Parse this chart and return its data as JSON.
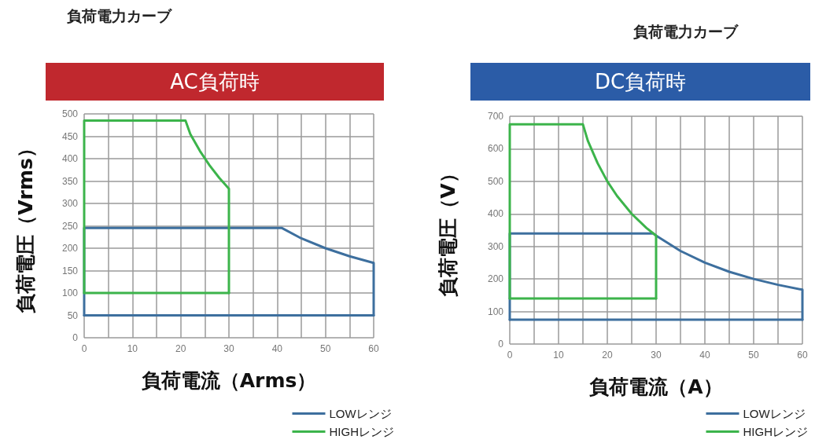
{
  "chart_data": [
    {
      "type": "line",
      "title": "負荷電力カーブ",
      "subtitle": "AC負荷時",
      "xlabel": "負荷電流（Arms）",
      "ylabel": "負荷電圧（Vrms）",
      "series": [
        {
          "name": "LOWレンジ",
          "color": "#3d6f9e",
          "x": [
            0,
            0,
            41,
            45,
            50,
            55,
            60,
            60
          ],
          "values": [
            50,
            245,
            245,
            222,
            200,
            182,
            167,
            50
          ]
        },
        {
          "color": "#3d6f9e",
          "x": [
            0,
            60
          ],
          "values": [
            50,
            50
          ]
        },
        {
          "name": "HIGHレンジ",
          "color": "#3cb44b",
          "x": [
            0,
            0,
            21,
            22,
            24,
            26,
            28,
            30,
            30
          ],
          "values": [
            100,
            485,
            485,
            455,
            417,
            385,
            357,
            333,
            100
          ]
        },
        {
          "color": "#3cb44b",
          "x": [
            0,
            30
          ],
          "values": [
            100,
            100
          ]
        }
      ],
      "xlim": [
        0,
        60
      ],
      "xticks": [
        0,
        {
          "value": 5,
          "label": null
        },
        10,
        {
          "value": 15,
          "label": null
        },
        20,
        {
          "value": 25,
          "label": null
        },
        30,
        {
          "value": 35,
          "label": null
        },
        40,
        {
          "value": 45,
          "label": null
        },
        50,
        {
          "value": 55,
          "label": null
        },
        60
      ],
      "ylim": [
        0,
        500
      ],
      "yticks": [
        0,
        50,
        100,
        150,
        200,
        250,
        300,
        350,
        400,
        450,
        500
      ],
      "grid": true,
      "legend": "bottom right",
      "marker": "none",
      "line_style": "solid"
    },
    {
      "type": "line",
      "title": "負荷電力カーブ",
      "subtitle": "DC負荷時",
      "xlabel": "負荷電流（A）",
      "ylabel": "負荷電圧（V）",
      "series": [
        {
          "name": "LOWレンジ",
          "color": "#3d6f9e",
          "x": [
            0,
            0,
            29.4,
            30,
            35,
            40,
            45,
            50,
            55,
            60,
            60
          ],
          "values": [
            75,
            340,
            340,
            333,
            286,
            250,
            222,
            200,
            182,
            167,
            75
          ]
        },
        {
          "color": "#3d6f9e",
          "x": [
            0,
            60
          ],
          "values": [
            75,
            75
          ]
        },
        {
          "name": "HIGHレンジ",
          "color": "#3cb44b",
          "x": [
            0,
            0,
            15,
            16,
            18,
            20,
            22,
            25,
            28,
            30,
            30
          ],
          "values": [
            140,
            675,
            675,
            625,
            556,
            500,
            455,
            400,
            357,
            333,
            140
          ]
        },
        {
          "color": "#3cb44b",
          "x": [
            0,
            30
          ],
          "values": [
            140,
            140
          ]
        }
      ],
      "xlim": [
        0,
        60
      ],
      "xticks": [
        0,
        {
          "value": 5,
          "label": null
        },
        10,
        {
          "value": 15,
          "label": null
        },
        20,
        {
          "value": 25,
          "label": null
        },
        30,
        {
          "value": 35,
          "label": null
        },
        40,
        {
          "value": 45,
          "label": null
        },
        50,
        {
          "value": 55,
          "label": null
        },
        60
      ],
      "ylim": [
        0,
        700
      ],
      "yticks": [
        0,
        100,
        200,
        300,
        400,
        500,
        600,
        700
      ],
      "grid": true,
      "legend": "bottom right",
      "marker": "none",
      "line_style": "solid"
    }
  ]
}
